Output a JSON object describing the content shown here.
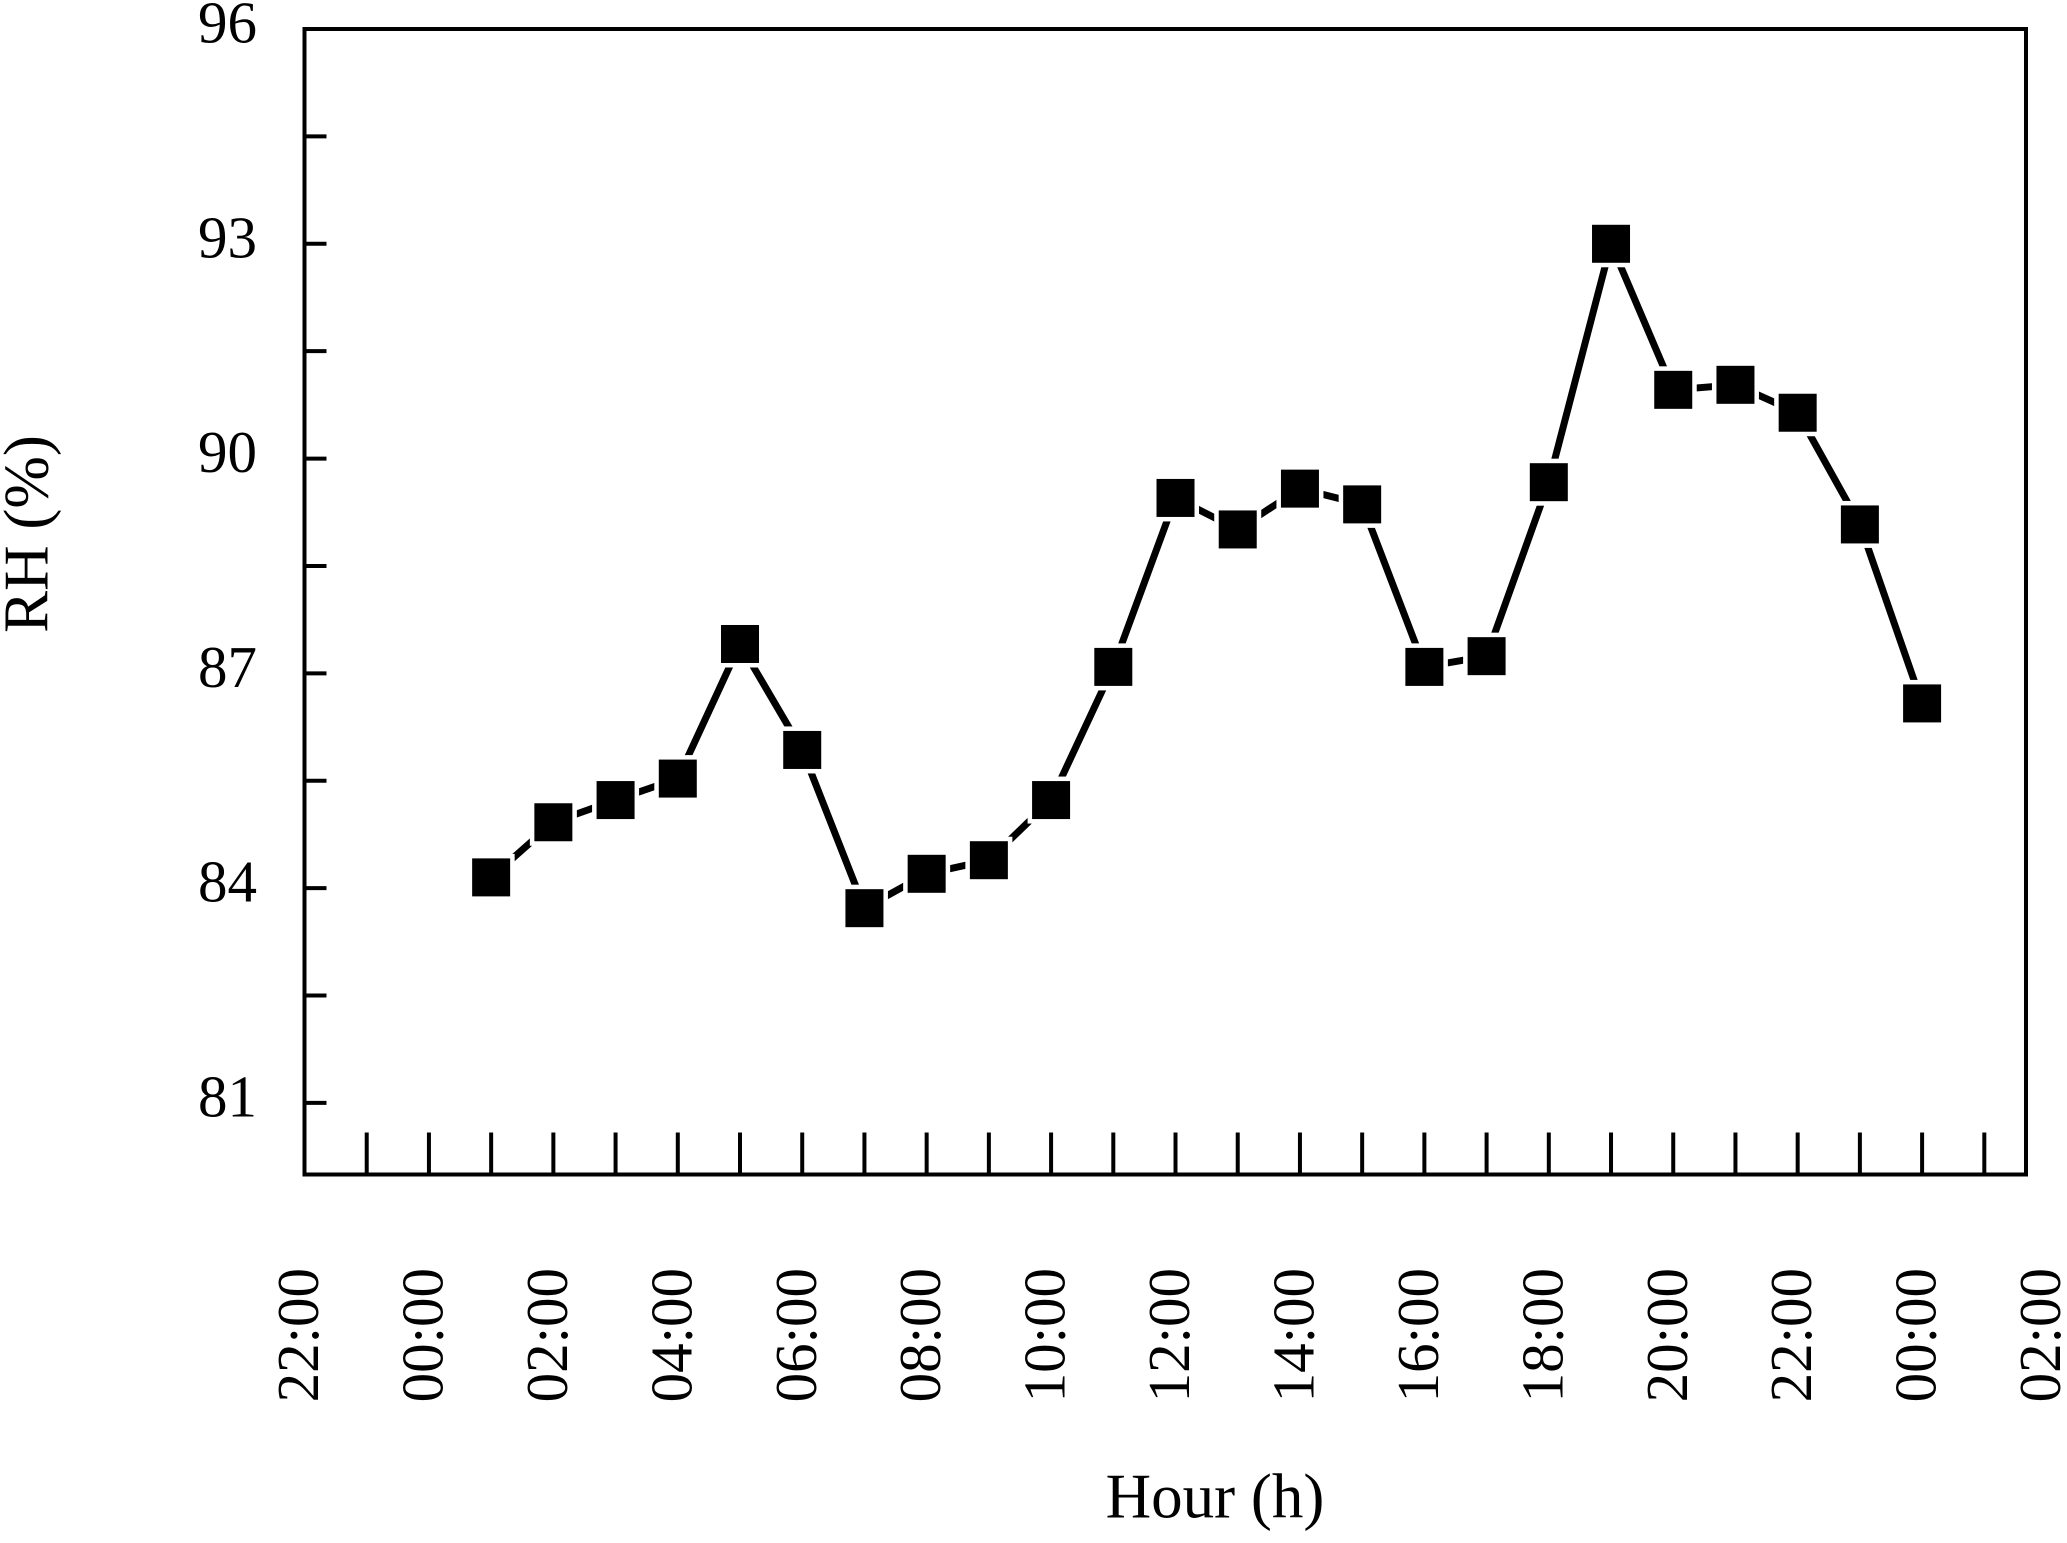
{
  "chart_data": {
    "type": "line",
    "x_label": "Hour (h)",
    "y_label": "RH (%)",
    "x": [
      1,
      2,
      3,
      4,
      5,
      6,
      7,
      8,
      9,
      10,
      11,
      12,
      13,
      14,
      15,
      16,
      17,
      18,
      19,
      20,
      21,
      22,
      23,
      24
    ],
    "series": [
      {
        "color": "#000000",
        "values": [
          84.15,
          84.92,
          85.23,
          85.53,
          87.41,
          85.93,
          83.72,
          84.2,
          84.39,
          85.23,
          87.09,
          89.45,
          89.01,
          89.58,
          89.36,
          87.09,
          87.24,
          89.67,
          93.0,
          90.96,
          91.03,
          90.64,
          89.08,
          86.58
        ]
      }
    ],
    "xlim": [
      -2,
      25.67
    ],
    "xticks": [
      {
        "value": -2,
        "label": "22:00"
      },
      {
        "value": 0,
        "label": "00:00"
      },
      {
        "value": 2,
        "label": "02:00"
      },
      {
        "value": 4,
        "label": "04:00"
      },
      {
        "value": 6,
        "label": "06:00"
      },
      {
        "value": 8,
        "label": "08:00"
      },
      {
        "value": 10,
        "label": "10:00"
      },
      {
        "value": 12,
        "label": "12:00"
      },
      {
        "value": 14,
        "label": "14:00"
      },
      {
        "value": 16,
        "label": "16:00"
      },
      {
        "value": 18,
        "label": "18:00"
      },
      {
        "value": 20,
        "label": "20:00"
      },
      {
        "value": 22,
        "label": "22:00"
      },
      {
        "value": 24,
        "label": "00:00"
      },
      {
        "value": 26,
        "label": "02:00"
      }
    ],
    "ylim": [
      80,
      96
    ],
    "yticks": [
      81,
      84,
      87,
      90,
      93,
      96
    ],
    "grid": false
  }
}
